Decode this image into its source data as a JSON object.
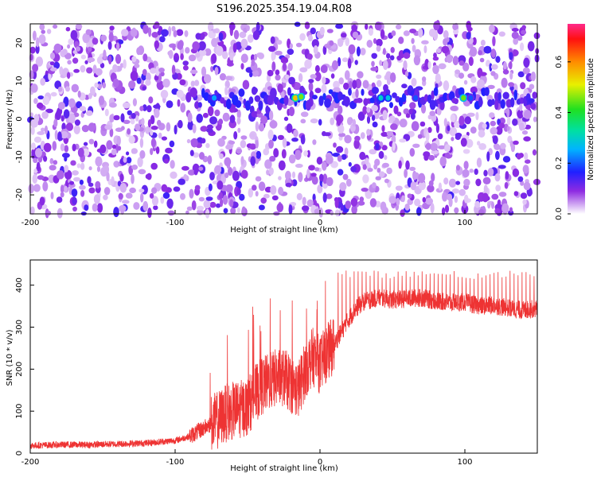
{
  "title": "S196.2025.354.19.04.R08",
  "chart_data": [
    {
      "type": "heatmap",
      "xlabel": "Height of straight line (km)",
      "ylabel": "Frequency (Hz)",
      "xlim": [
        -200,
        150
      ],
      "ylim": [
        -25,
        25
      ],
      "xticks": [
        -200,
        -100,
        0,
        100
      ],
      "yticks": [
        -20,
        -10,
        0,
        10,
        20
      ],
      "colorbar": {
        "label": "Normalized spectral amplitude",
        "range": [
          0,
          0.75
        ],
        "ticks": [
          "0.0",
          "0.2",
          "0.4",
          "0.6"
        ],
        "tick_values": [
          0.0,
          0.2,
          0.4,
          0.6
        ]
      },
      "features": {
        "band_center_hz": 5.5,
        "band_start_km": -85,
        "hotspots": [
          {
            "x": -73,
            "y": 5.5,
            "v": 0.25
          },
          {
            "x": -17,
            "y": 5.5,
            "v": 0.55
          },
          {
            "x": -13,
            "y": 5.8,
            "v": 0.45
          },
          {
            "x": 42,
            "y": 5.5,
            "v": 0.3
          },
          {
            "x": 47,
            "y": 5.5,
            "v": 0.28
          },
          {
            "x": 66,
            "y": 5.5,
            "v": 0.2
          },
          {
            "x": 99,
            "y": 5.5,
            "v": 0.45
          },
          {
            "x": 104,
            "y": 5.5,
            "v": 0.2
          }
        ]
      }
    },
    {
      "type": "line",
      "xlabel": "Height of straight line (km)",
      "ylabel": "SNR (10 * v/v)",
      "xlim": [
        -200,
        150
      ],
      "ylim": [
        0,
        460
      ],
      "xticks": [
        -200,
        -100,
        0,
        100
      ],
      "yticks": [
        0,
        100,
        200,
        300,
        400
      ],
      "color": "#ee3333",
      "series": [
        {
          "name": "SNR",
          "x": [
            -200,
            -180,
            -160,
            -140,
            -120,
            -100,
            -90,
            -80,
            -75,
            -70,
            -65,
            -60,
            -55,
            -50,
            -45,
            -40,
            -35,
            -30,
            -25,
            -20,
            -15,
            -10,
            -5,
            0,
            5,
            10,
            15,
            20,
            25,
            30,
            40,
            50,
            60,
            70,
            80,
            90,
            100,
            110,
            120,
            130,
            140,
            150
          ],
          "values": [
            18,
            20,
            20,
            22,
            24,
            30,
            40,
            60,
            70,
            80,
            95,
            100,
            105,
            110,
            140,
            160,
            170,
            180,
            180,
            165,
            150,
            200,
            230,
            210,
            240,
            260,
            290,
            320,
            345,
            360,
            370,
            365,
            368,
            370,
            362,
            358,
            360,
            350,
            352,
            345,
            340,
            345
          ]
        }
      ],
      "spikes_top": {
        "start_km": 10,
        "end_km": 150,
        "level": 435
      }
    }
  ]
}
